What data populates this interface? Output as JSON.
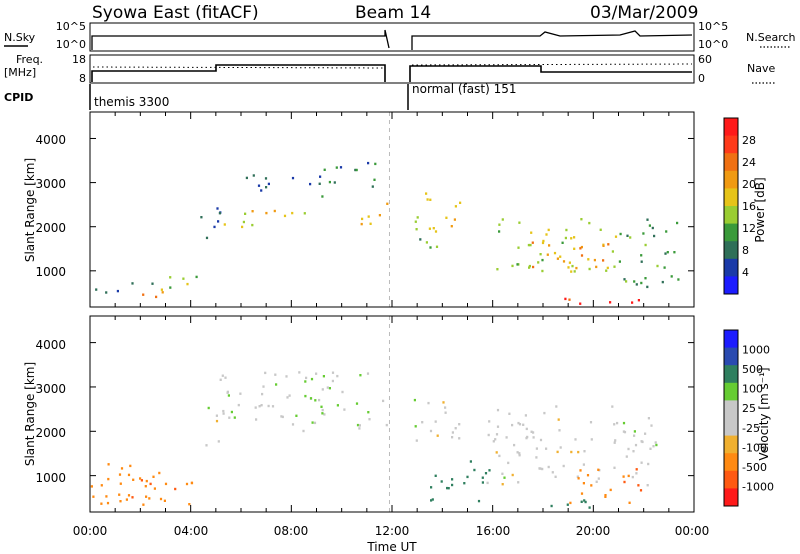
{
  "header": {
    "station": "Syowa East (fitACF)",
    "beam": "Beam 14",
    "date": "03/Mar/2009"
  },
  "status_panels": {
    "nsky_label": "N.Sky",
    "nsky_ticks": [
      "10^5",
      "10^0"
    ],
    "nsearch_label": "N.Search",
    "nsearch_ticks": [
      "10^5",
      "10^0"
    ],
    "freq_label_line1": "Freq.",
    "freq_label_line2": "[MHz]",
    "freq_ticks": [
      "18",
      "8"
    ],
    "nave_label": "Nave",
    "nave_ticks": [
      "60",
      "0"
    ],
    "cpid_label": "CPID",
    "cpid_segments": [
      "themis 3300",
      "normal (fast) 151"
    ]
  },
  "colors": {
    "power": [
      "#1c1cff",
      "#1a3aa8",
      "#2f6f58",
      "#3a9a3a",
      "#9acd32",
      "#e6c419",
      "#f09a12",
      "#f07012",
      "#ff3a1a",
      "#ff1a1a"
    ],
    "velocity": [
      "#ff1a1a",
      "#ff5a12",
      "#ff8a12",
      "#f0b030",
      "#c8c8c8",
      "#c8c8c8",
      "#66cc33",
      "#2f7f5f",
      "#2a4ab0",
      "#1c1cff"
    ]
  },
  "chart_data": [
    {
      "type": "heatmap",
      "name": "power",
      "xlabel": "",
      "ylabel": "Slant Range [km]",
      "ylim": [
        180,
        4600
      ],
      "yticks": [
        "1000",
        "2000",
        "3000",
        "4000"
      ],
      "x_ticks": [
        "00:00",
        "04:00",
        "08:00",
        "12:00",
        "16:00",
        "20:00",
        "00:00"
      ],
      "colorbar_label": "Power [dB]",
      "colorbar_ticks": [
        "4",
        "8",
        "12",
        "16",
        "20",
        "24",
        "28"
      ],
      "clim": [
        0,
        30
      ],
      "patches": [
        {
          "t": [
            0.0,
            2.5
          ],
          "r": [
            500,
            800
          ],
          "value": 8
        },
        {
          "t": [
            2.0,
            4.2
          ],
          "r": [
            550,
            950
          ],
          "value": 14
        },
        {
          "t": [
            1.5,
            3.5
          ],
          "r": [
            350,
            550
          ],
          "value": 22
        },
        {
          "t": [
            4.3,
            5.2
          ],
          "r": [
            1600,
            2700
          ],
          "value": 6
        },
        {
          "t": [
            5.0,
            9.0
          ],
          "r": [
            2000,
            2400
          ],
          "value": 16
        },
        {
          "t": [
            6.0,
            9.0
          ],
          "r": [
            2800,
            3200
          ],
          "value": 6
        },
        {
          "t": [
            9.0,
            11.5
          ],
          "r": [
            2700,
            3500
          ],
          "value": 8
        },
        {
          "t": [
            10.5,
            11.8
          ],
          "r": [
            2000,
            2600
          ],
          "value": 18
        },
        {
          "t": [
            12.8,
            15.0
          ],
          "r": [
            1900,
            2800
          ],
          "value": 16
        },
        {
          "t": [
            13.0,
            14.5
          ],
          "r": [
            1500,
            1900
          ],
          "value": 10
        },
        {
          "t": [
            16.0,
            21.0
          ],
          "r": [
            1000,
            2200
          ],
          "value": 14
        },
        {
          "t": [
            17.5,
            21.0
          ],
          "r": [
            1000,
            1700
          ],
          "value": 20
        },
        {
          "t": [
            18.5,
            22.0
          ],
          "r": [
            250,
            500
          ],
          "value": 26
        },
        {
          "t": [
            21.0,
            23.5
          ],
          "r": [
            600,
            2200
          ],
          "value": 10
        }
      ]
    },
    {
      "type": "heatmap",
      "name": "velocity",
      "xlabel": "Time UT",
      "ylabel": "Slant Range [km]",
      "ylim": [
        180,
        4600
      ],
      "yticks": [
        "1000",
        "2000",
        "3000",
        "4000"
      ],
      "x_ticks": [
        "00:00",
        "04:00",
        "08:00",
        "12:00",
        "16:00",
        "20:00",
        "00:00"
      ],
      "colorbar_label": "Velocity [m s⁻¹]",
      "colorbar_ticks": [
        "1000",
        "500",
        "100",
        "25",
        "-25",
        "-100",
        "-500",
        "-1000"
      ],
      "clim": [
        -1000,
        1000
      ],
      "patches": [
        {
          "t": [
            0.0,
            4.2
          ],
          "r": [
            350,
            1300
          ],
          "value": -200
        },
        {
          "t": [
            1.0,
            3.5
          ],
          "r": [
            500,
            1000
          ],
          "value": -500
        },
        {
          "t": [
            4.5,
            5.2
          ],
          "r": [
            1700,
            2600
          ],
          "value": 0
        },
        {
          "t": [
            5.0,
            11.8
          ],
          "r": [
            2000,
            3400
          ],
          "value": 10
        },
        {
          "t": [
            12.8,
            15.0
          ],
          "r": [
            1800,
            2800
          ],
          "value": 0
        },
        {
          "t": [
            13.5,
            16.0
          ],
          "r": [
            400,
            1400
          ],
          "value": 150
        },
        {
          "t": [
            15.5,
            22.5
          ],
          "r": [
            800,
            2600
          ],
          "value": 0
        },
        {
          "t": [
            16.0,
            20.0
          ],
          "r": [
            300,
            500
          ],
          "value": 200
        },
        {
          "t": [
            19.0,
            21.5
          ],
          "r": [
            400,
            1200
          ],
          "value": -300
        },
        {
          "t": [
            21.0,
            22.0
          ],
          "r": [
            600,
            1200
          ],
          "value": -800
        }
      ]
    }
  ]
}
